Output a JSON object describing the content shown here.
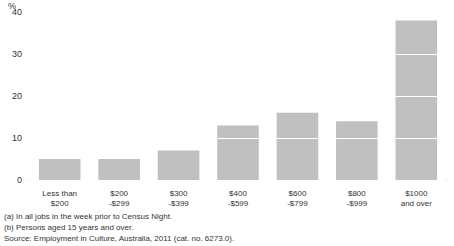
{
  "chart_data": {
    "type": "bar",
    "y_label": "%",
    "categories": [
      "Less than\n$200",
      "$200\n-$299",
      "$300\n-$399",
      "$400\n-$599",
      "$600\n-$799",
      "$800\n-$999",
      "$1000\nand over"
    ],
    "values": [
      5,
      5,
      7,
      13,
      16,
      14,
      38
    ],
    "color": "#c0c0c0",
    "ylim": [
      0,
      40
    ],
    "yticks": [
      0,
      10,
      20,
      30,
      40
    ],
    "grid": true,
    "notes": [
      "(a) In all jobs in the week prior to Census Night.",
      "(b) Persons aged 15 years and over.",
      "Source: Employment in Culture, Australia, 2011 (cat. no. 6273.0)."
    ]
  }
}
